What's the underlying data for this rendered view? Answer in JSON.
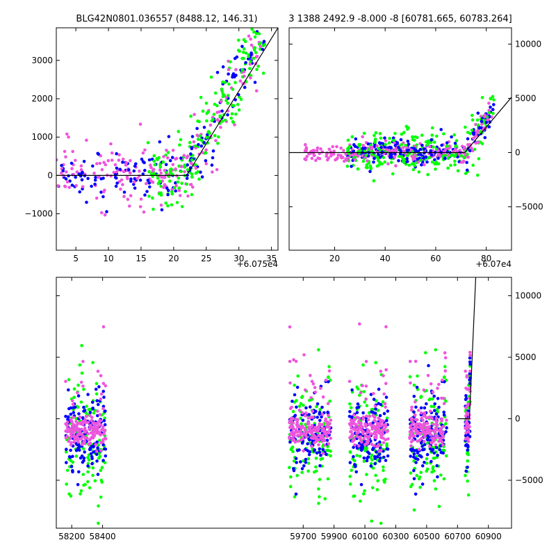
{
  "colors": {
    "green": "#00ff00",
    "blue": "#0000ff",
    "violet": "#ee55dd",
    "model": "#000000"
  },
  "chart_data": [
    {
      "type": "scatter",
      "title": "BLG42N0801.036557 (8488.12, 146.31)",
      "x_offset_label": "+6.075e4",
      "xlim": [
        2,
        36
      ],
      "ylim": [
        -1950,
        3850
      ],
      "x_ticks": [
        5,
        10,
        15,
        20,
        25,
        30,
        35
      ],
      "x_tick_labels": [
        "5",
        "10",
        "15",
        "20",
        "25",
        "30",
        "35"
      ],
      "y_ticks": [
        -1000,
        0,
        1000,
        2000,
        3000
      ],
      "y_tick_labels": [
        "−1000",
        "0",
        "1000",
        "2000",
        "3000"
      ],
      "y_axis_side": "left",
      "model_line": {
        "x": [
          2,
          22,
          36
        ],
        "y": [
          0,
          0,
          3850
        ]
      },
      "series": [
        {
          "color_key": "green",
          "x_range": [
            16,
            34
          ],
          "trend_start": 21.5,
          "slope": 300,
          "noise": 550,
          "count": 200
        },
        {
          "color_key": "blue",
          "x_range": [
            2,
            34
          ],
          "trend_start": 21.5,
          "slope": 300,
          "noise": 450,
          "count": 170
        },
        {
          "color_key": "violet",
          "x_range": [
            2,
            34
          ],
          "trend_start": 21.5,
          "slope": 290,
          "noise": 500,
          "count": 200
        }
      ]
    },
    {
      "type": "scatter",
      "title": "3 1388 2492.9 -8.000 -8 [60781.665, 60783.264]",
      "x_offset_label": "+6.07e4",
      "xlim": [
        2,
        90
      ],
      "ylim": [
        -9000,
        11500
      ],
      "x_ticks": [
        20,
        40,
        60,
        80
      ],
      "x_tick_labels": [
        "20",
        "40",
        "60",
        "80"
      ],
      "y_ticks": [
        -5000,
        0,
        5000,
        10000
      ],
      "y_tick_labels": [
        "−5000",
        "0",
        "5000",
        "10000"
      ],
      "y_axis_side": "right",
      "model_line": {
        "x": [
          2,
          71.5,
          90
        ],
        "y": [
          0,
          0,
          5100
        ]
      },
      "series": [
        {
          "color_key": "green",
          "x_range": [
            25,
            83
          ],
          "trend_start": 72,
          "slope": 420,
          "noise": 1300,
          "count": 230
        },
        {
          "color_key": "blue",
          "x_range": [
            25,
            83
          ],
          "trend_start": 72,
          "slope": 400,
          "noise": 700,
          "count": 230
        },
        {
          "color_key": "violet",
          "x_range": [
            8,
            83
          ],
          "trend_start": 72,
          "slope": 400,
          "noise": 550,
          "count": 260
        }
      ]
    },
    {
      "type": "scatter",
      "title": "",
      "xlim": [
        58100,
        61050
      ],
      "ylim": [
        -8900,
        11500
      ],
      "x_ticks": [
        58200,
        58400,
        59700,
        59900,
        60100,
        60300,
        60500,
        60700,
        60900
      ],
      "x_tick_labels": [
        "58200",
        "58400",
        "59700",
        "59900",
        "60100",
        "60300",
        "60500",
        "60700",
        "60900"
      ],
      "y_ticks": [
        -5000,
        0,
        5000,
        10000
      ],
      "y_tick_labels": [
        "−5000",
        "0",
        "5000",
        "10000"
      ],
      "y_axis_side": "right",
      "model_line": {
        "x": [
          60700,
          60777,
          60795,
          60818
        ],
        "y": [
          0,
          0,
          5000,
          11500
        ]
      },
      "seasons": [
        {
          "x_range": [
            58160,
            58420
          ],
          "center": -1000,
          "count": 420
        },
        {
          "x_range": [
            59610,
            59880
          ],
          "center": -1000,
          "count": 420
        },
        {
          "x_range": [
            60000,
            60250
          ],
          "center": -1000,
          "count": 420
        },
        {
          "x_range": [
            60390,
            60630
          ],
          "center": -1000,
          "count": 420
        },
        {
          "x_range": [
            60750,
            60783
          ],
          "center": -500,
          "count": 120
        }
      ]
    }
  ]
}
